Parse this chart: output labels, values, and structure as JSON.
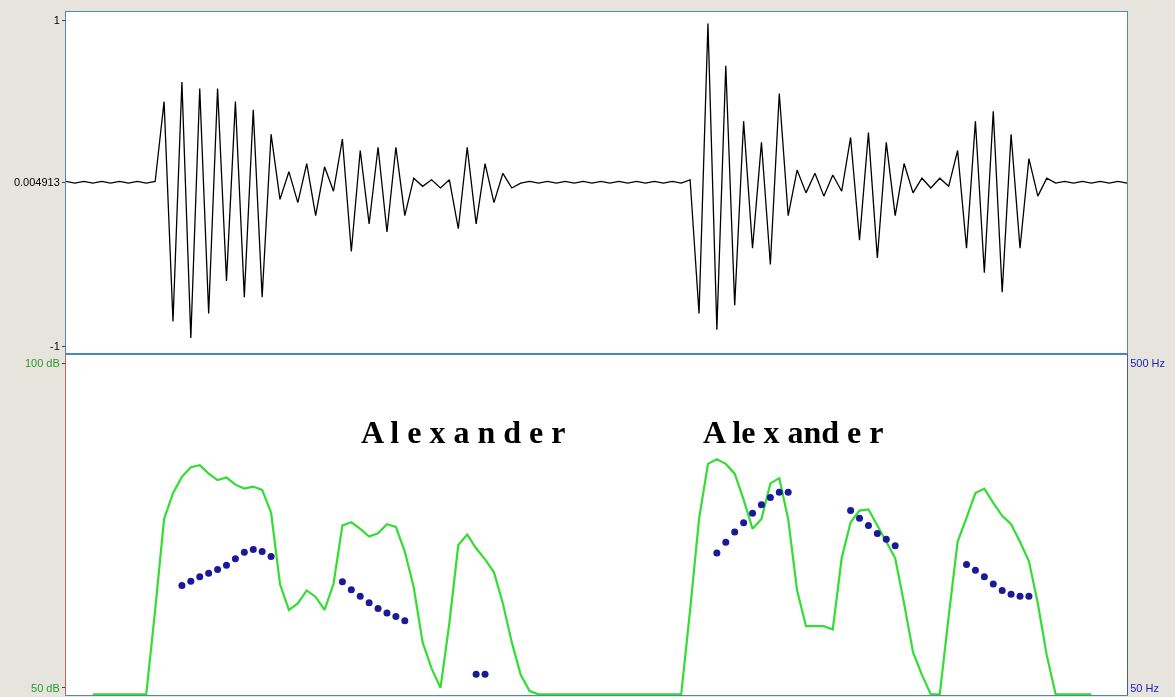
{
  "chart_data": [
    {
      "type": "line",
      "categories": [
        null,
        null,
        null,
        null,
        null,
        null,
        null,
        null,
        null,
        null,
        null,
        null,
        null,
        null,
        null,
        null,
        null,
        null,
        null,
        null,
        null,
        null,
        null,
        null,
        null,
        null,
        null,
        null,
        null,
        null,
        null,
        null,
        null,
        null,
        null,
        null,
        null,
        null,
        null,
        null,
        null,
        null,
        null,
        null,
        null,
        null,
        null,
        null,
        null,
        null,
        null,
        null,
        null,
        null,
        null,
        null,
        null,
        null,
        null,
        null,
        null,
        null,
        null,
        null,
        null,
        null,
        null,
        null,
        null,
        null,
        null,
        null,
        null,
        null,
        null,
        null,
        null,
        null,
        null,
        null,
        null,
        null,
        null,
        null,
        null,
        null,
        null,
        null,
        null,
        null,
        null,
        null,
        null,
        null,
        null,
        null,
        null,
        null,
        null,
        null,
        null,
        null,
        null,
        null,
        null,
        null,
        null,
        null,
        null,
        null,
        null,
        null,
        null,
        null,
        null,
        null,
        null,
        null,
        null,
        null
      ],
      "values": [
        0.01,
        0,
        0.01,
        0,
        0.01,
        0,
        0.01,
        0,
        0.01,
        0,
        0.01,
        0.5,
        -0.85,
        0.62,
        -0.95,
        0.58,
        -0.8,
        0.58,
        -0.6,
        0.5,
        -0.7,
        0.45,
        -0.7,
        0.3,
        -0.1,
        0.07,
        -0.12,
        0.12,
        -0.2,
        0.1,
        -0.05,
        0.27,
        -0.42,
        0.2,
        -0.25,
        0.22,
        -0.3,
        0.22,
        -0.2,
        0.03,
        -0.02,
        0.02,
        -0.03,
        0.02,
        -0.28,
        0.22,
        -0.25,
        0.12,
        -0.12,
        0.06,
        -0.03,
        0,
        0.01,
        0,
        0.01,
        0,
        0.01,
        0,
        0.01,
        0,
        0.01,
        0,
        0.01,
        0,
        0.01,
        0,
        0.01,
        0,
        0.01,
        0,
        0.02,
        -0.8,
        0.98,
        -0.9,
        0.72,
        -0.75,
        0.38,
        -0.4,
        0.25,
        -0.5,
        0.55,
        -0.2,
        0.08,
        -0.06,
        0.06,
        -0.08,
        0.05,
        -0.05,
        0.28,
        -0.35,
        0.31,
        -0.46,
        0.25,
        -0.2,
        0.12,
        -0.06,
        0.03,
        -0.03,
        0.03,
        -0.02,
        0.2,
        -0.4,
        0.38,
        -0.55,
        0.44,
        -0.67,
        0.3,
        -0.4,
        0.15,
        -0.08,
        0.03,
        0,
        0.01,
        0,
        0.01,
        0,
        0.01,
        0,
        0.01,
        0
      ],
      "color": "#000000",
      "ylim": [
        -1.05,
        1.05
      ],
      "yticks": [
        1,
        0.004913,
        -1
      ],
      "tick_labels": "y"
    },
    {
      "type": "line",
      "categories": [
        null,
        null,
        null,
        null,
        null,
        null,
        null,
        null,
        null,
        null,
        null,
        null,
        null,
        null,
        null,
        null,
        null,
        null,
        null,
        null,
        null,
        null,
        null,
        null,
        null,
        null,
        null,
        null,
        null,
        null,
        null,
        null,
        null,
        null,
        null,
        null,
        null,
        null,
        null,
        null,
        null,
        null,
        null,
        null,
        null,
        null,
        null,
        null,
        null,
        null,
        null,
        null,
        null,
        null,
        null,
        null,
        null,
        null,
        null,
        null,
        null,
        null,
        null,
        null,
        null,
        null,
        null,
        null,
        null,
        null,
        null,
        null,
        null,
        null,
        null,
        null,
        null,
        null,
        null,
        null,
        null,
        null,
        null,
        null,
        null,
        null,
        null,
        null,
        null,
        null,
        null,
        null,
        null,
        null,
        null,
        null,
        null,
        null,
        null,
        null,
        null,
        null,
        null,
        null,
        null,
        null,
        null,
        null,
        null,
        null,
        null,
        null,
        null,
        null,
        null,
        null,
        null,
        null,
        null,
        null
      ],
      "series": [
        {
          "color": "#33dd33",
          "values": [
            null,
            null,
            null,
            49,
            49,
            49,
            49,
            49,
            49,
            49,
            62,
            76,
            80,
            82.5,
            84,
            84.3,
            83,
            82,
            82.4,
            81.3,
            80.7,
            81,
            80.5,
            77,
            66,
            62,
            63,
            65,
            64,
            62,
            66,
            75,
            75.5,
            74.5,
            73.3,
            73.8,
            75.2,
            74.8,
            71,
            65.5,
            57,
            53,
            50,
            60,
            72,
            73.6,
            71.5,
            69.8,
            67.8,
            63,
            57,
            52,
            49.5,
            49,
            49,
            49,
            49,
            49,
            49,
            49,
            49,
            49,
            49,
            49,
            49,
            49,
            49,
            49,
            49,
            49,
            62,
            76,
            84.5,
            85.2,
            84.5,
            83,
            79,
            74.5,
            76,
            81.5,
            82.3,
            76,
            65,
            59.5,
            59.5,
            59.5,
            59,
            70,
            75.5,
            77.3,
            77.5,
            75,
            72.5,
            70,
            63,
            55.5,
            52,
            49,
            49,
            61,
            72.5,
            76.2,
            80,
            80.7,
            78.5,
            76.5,
            75.2,
            72.5,
            69.5,
            63,
            55,
            49,
            49,
            49,
            49,
            49,
            null,
            null,
            null,
            null
          ]
        },
        {
          "type": "scatter",
          "axis": "y2",
          "marker": "circle",
          "color": "#1a1a99",
          "values": [
            null,
            null,
            null,
            null,
            null,
            null,
            null,
            null,
            null,
            null,
            null,
            null,
            null,
            192,
            198,
            204,
            209,
            214,
            220,
            229,
            238,
            242,
            239,
            232,
            null,
            null,
            null,
            null,
            null,
            null,
            null,
            197,
            186,
            177,
            168,
            160,
            154,
            149,
            143,
            null,
            null,
            null,
            null,
            null,
            null,
            null,
            69,
            69,
            null,
            null,
            null,
            null,
            null,
            null,
            null,
            null,
            null,
            null,
            null,
            null,
            null,
            null,
            null,
            null,
            null,
            null,
            null,
            null,
            null,
            null,
            null,
            null,
            null,
            237,
            252,
            266,
            279,
            292,
            304,
            314,
            321,
            321,
            null,
            null,
            null,
            null,
            null,
            null,
            296,
            285,
            275,
            264,
            256,
            247,
            null,
            null,
            null,
            null,
            null,
            null,
            null,
            221,
            213,
            204,
            194,
            185,
            180,
            177,
            177,
            null,
            null,
            null,
            null,
            null,
            null,
            null,
            null,
            null,
            null,
            null
          ]
        }
      ],
      "ylim": [
        48.9,
        101.4
      ],
      "yticks": [
        {
          "value": 50,
          "label": "50 dB"
        },
        {
          "value": 100,
          "label": "100 dB"
        }
      ],
      "y2lim": [
        40.3,
        512.4
      ],
      "y2ticks": [
        {
          "value": 50,
          "label": "50 Hz"
        },
        {
          "value": 500,
          "label": "500 Hz"
        }
      ],
      "annotations": [
        "A l e x a n d e r",
        "A le x and e r"
      ],
      "tick_labels": "y"
    }
  ]
}
